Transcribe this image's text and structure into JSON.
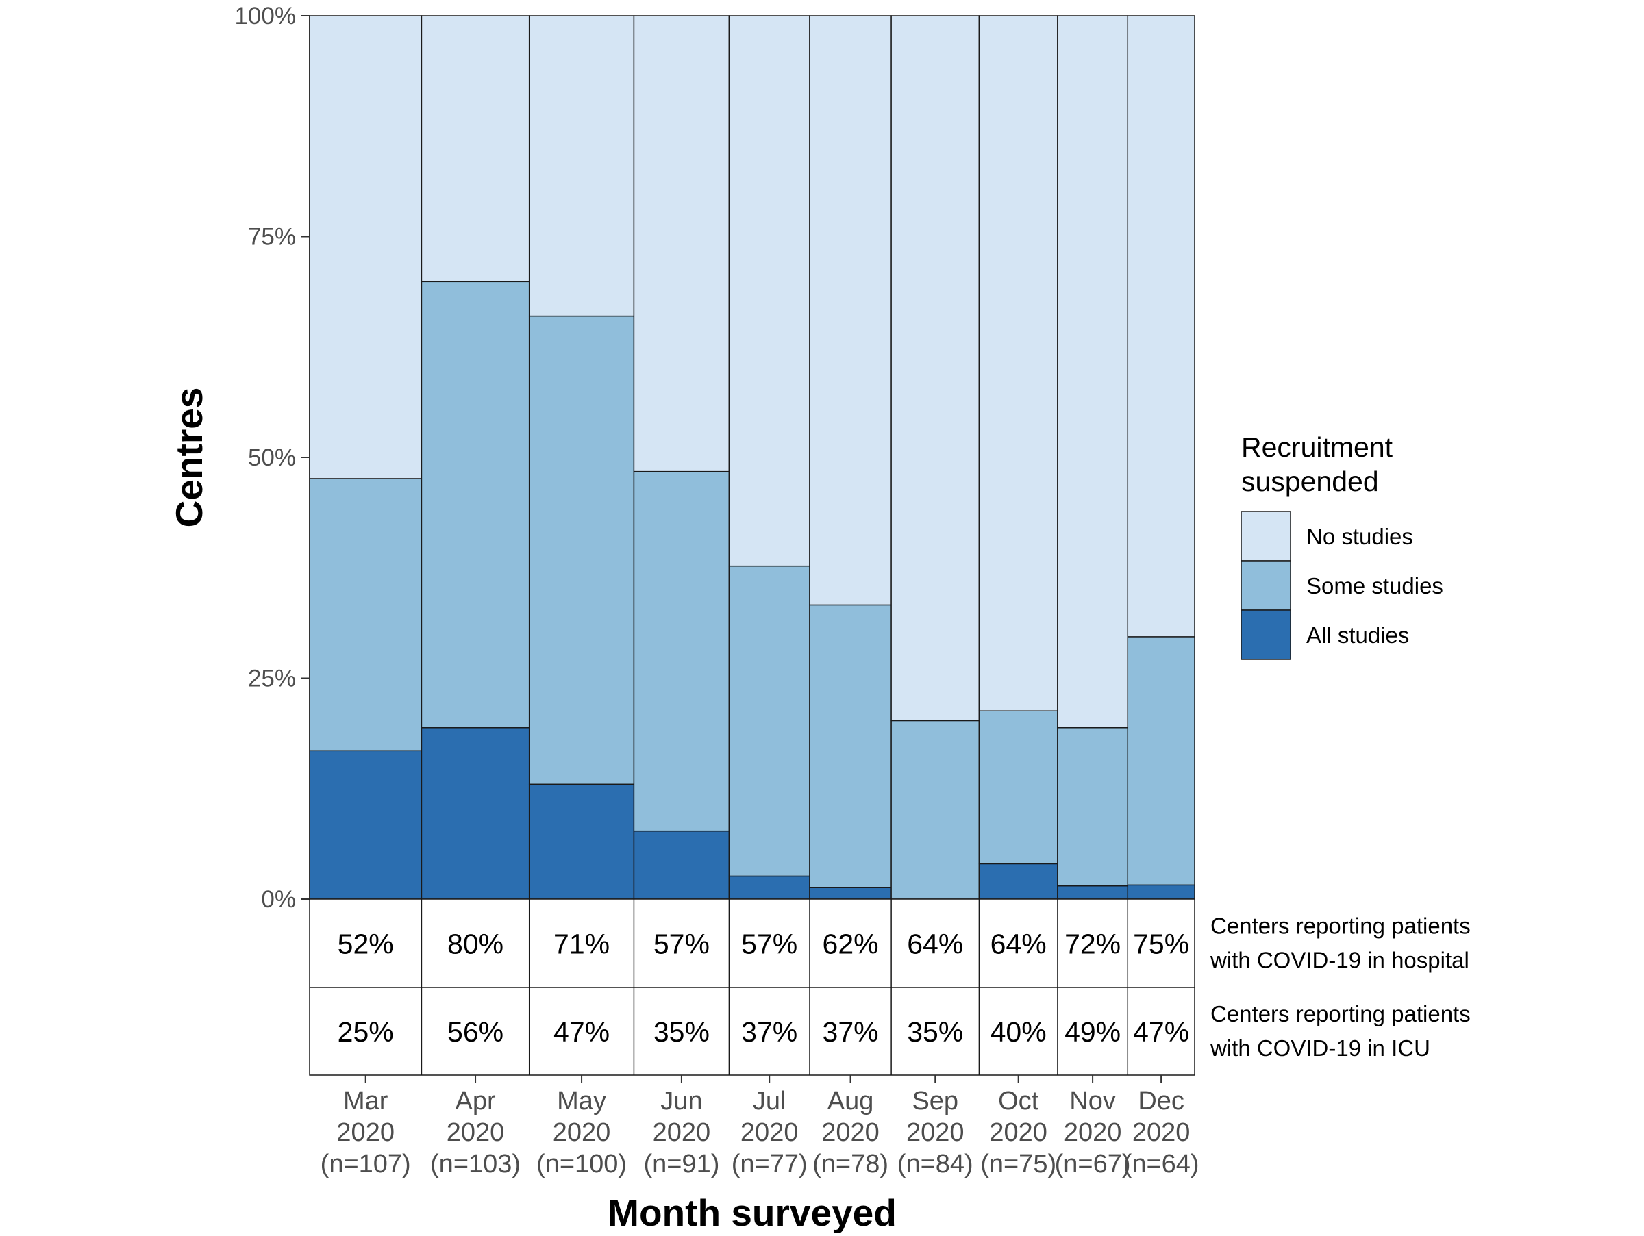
{
  "chart_data": {
    "type": "bar",
    "stacked": true,
    "variable_width": true,
    "title": "",
    "xlabel": "Month surveyed",
    "ylabel": "Centres",
    "ylim": [
      0,
      100
    ],
    "yticks": [
      "0%",
      "25%",
      "50%",
      "75%",
      "100%"
    ],
    "categories": [
      {
        "month": "Mar",
        "year": "2020",
        "n": "(n=107)",
        "count": 107
      },
      {
        "month": "Apr",
        "year": "2020",
        "n": "(n=103)",
        "count": 103
      },
      {
        "month": "May",
        "year": "2020",
        "n": "(n=100)",
        "count": 100
      },
      {
        "month": "Jun",
        "year": "2020",
        "n": "(n=91)",
        "count": 91
      },
      {
        "month": "Jul",
        "year": "2020",
        "n": "(n=77)",
        "count": 77
      },
      {
        "month": "Aug",
        "year": "2020",
        "n": "(n=78)",
        "count": 78
      },
      {
        "month": "Sep",
        "year": "2020",
        "n": "(n=84)",
        "count": 84
      },
      {
        "month": "Oct",
        "year": "2020",
        "n": "(n=75)",
        "count": 75
      },
      {
        "month": "Nov",
        "year": "2020",
        "n": "(n=67)",
        "count": 67
      },
      {
        "month": "Dec",
        "year": "2020",
        "n": "(n=64)",
        "count": 64
      }
    ],
    "series": [
      {
        "name": "All studies",
        "color": "#2b6eb0",
        "values": [
          16.8,
          19.4,
          13.0,
          7.7,
          2.6,
          1.3,
          0.0,
          4.0,
          1.5,
          1.6
        ]
      },
      {
        "name": "Some studies",
        "color": "#90bedb",
        "values": [
          30.8,
          50.5,
          53.0,
          40.7,
          35.1,
          32.0,
          20.2,
          17.3,
          17.9,
          28.1
        ]
      },
      {
        "name": "No studies",
        "color": "#d5e5f4",
        "values": [
          52.4,
          30.1,
          34.0,
          51.6,
          62.3,
          66.7,
          79.8,
          78.7,
          80.6,
          70.3
        ]
      }
    ],
    "legend": {
      "title_lines": [
        "Recruitment",
        "suspended"
      ],
      "placement": "right",
      "entries": [
        "No studies",
        "Some studies",
        "All studies"
      ]
    },
    "table_rows": [
      {
        "label_lines": [
          "Centers reporting patients",
          "with COVID-19 in hospital"
        ],
        "values": [
          "52%",
          "80%",
          "71%",
          "57%",
          "57%",
          "62%",
          "64%",
          "64%",
          "72%",
          "75%"
        ]
      },
      {
        "label_lines": [
          "Centers reporting patients",
          "with COVID-19 in ICU"
        ],
        "values": [
          "25%",
          "56%",
          "47%",
          "35%",
          "37%",
          "37%",
          "35%",
          "40%",
          "49%",
          "47%"
        ]
      }
    ]
  }
}
